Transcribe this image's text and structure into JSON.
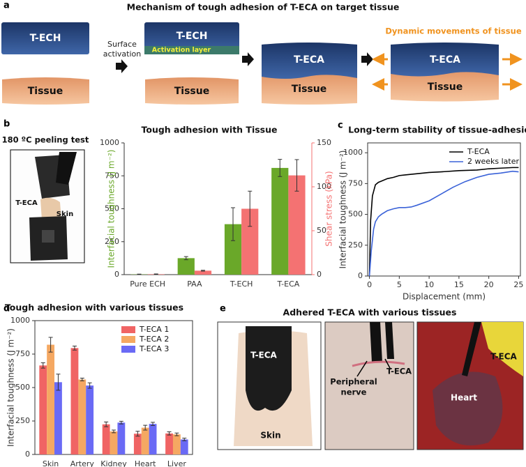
{
  "panel_labels": [
    "a",
    "b",
    "c",
    "d",
    "e"
  ],
  "diagram": {
    "title": "Mechanism of tough adhesion of T-ECA on target tissue",
    "step1_top": "T-ECH",
    "step1_bottom": "Tissue",
    "arrow1_label": {
      "lines": [
        "Surface",
        "activation"
      ]
    },
    "step2_top": "T-ECH",
    "step2_layer": "Activation layer",
    "step2_bottom": "Tissue",
    "step3_top": "T-ECA",
    "step3_bottom": "Tissue",
    "step4_caption": "Dynamic movements of tissue",
    "step4_top": "T-ECA",
    "step4_bottom": "Tissue"
  },
  "photos": {
    "peel_title": "180 ºC peeling test",
    "peel_teca": "T-ECA",
    "peel_skin": "Skin",
    "panel_e_title": "Adhered T-ECA with various tissues",
    "e1_teca": "T-ECA",
    "e1_skin": "Skin",
    "e2_nerve": {
      "lines": [
        "Peripheral",
        "nerve"
      ]
    },
    "e2_teca": "T-ECA",
    "e3_teca": "T-ECA",
    "e3_heart": "Heart"
  },
  "chart_data": [
    {
      "type": "bar",
      "title": "Tough adhesion with Tissue",
      "categories": [
        "Pure ECH",
        "PAA",
        "T-ECH",
        "T-ECA"
      ],
      "ylabel": "Interfacial toughness (J m⁻²)",
      "y2label": "Shear stress (kPa)",
      "series": [
        {
          "color": "#6aa829",
          "values": [
            2,
            125,
            383,
            810
          ],
          "errors": [
            2,
            12,
            125,
            65
          ]
        },
        {
          "color": "#f47272",
          "axis": "y2",
          "values": [
            0.5,
            4.5,
            75,
            113
          ],
          "errors": [
            0.3,
            0.5,
            20,
            18
          ]
        }
      ],
      "ylim": [
        0,
        1000
      ],
      "yticks": [
        0,
        250,
        500,
        750,
        1000
      ],
      "y2lim": [
        0,
        150
      ],
      "y2ticks": [
        0,
        50,
        100,
        150
      ]
    },
    {
      "type": "line",
      "title": "Long-term stability of tissue-adhesion",
      "xlabel": "Displacement (mm)",
      "ylabel": "Interfacial toughness (J m⁻²)",
      "series": [
        {
          "name": "T-ECA",
          "color": "#000000",
          "x": [
            0,
            0.2,
            0.5,
            1,
            1.5,
            2,
            3,
            4,
            5,
            6,
            8,
            10,
            12,
            15,
            18,
            20,
            22,
            24,
            25
          ],
          "values": [
            0,
            450,
            650,
            740,
            760,
            770,
            790,
            800,
            815,
            820,
            830,
            840,
            845,
            855,
            860,
            870,
            875,
            880,
            880
          ]
        },
        {
          "name": "2 weeks later",
          "color": "#3a62d8",
          "x": [
            0,
            0.3,
            0.7,
            1,
            1.5,
            2,
            3,
            4,
            5,
            6,
            7,
            8,
            10,
            12,
            14,
            16,
            18,
            20,
            22,
            24,
            25
          ],
          "values": [
            0,
            200,
            380,
            440,
            480,
            500,
            530,
            545,
            555,
            555,
            560,
            575,
            610,
            665,
            720,
            765,
            800,
            825,
            835,
            850,
            845
          ]
        }
      ],
      "xlim": [
        -0.3,
        25.3
      ],
      "xticks": [
        0,
        5,
        10,
        15,
        20,
        25
      ],
      "ylim": [
        0,
        1080
      ],
      "yticks": [
        0,
        250,
        500,
        750,
        1000
      ],
      "legend": "upper right"
    },
    {
      "type": "bar",
      "title": "Tough adhesion with various tissues",
      "categories": [
        "Skin",
        "Artery",
        "Kidney",
        "Heart",
        "Liver"
      ],
      "ylabel": "Interfacial toughness (J m⁻²)",
      "series": [
        {
          "name": "T-ECA 1",
          "color": "#f06464",
          "values": [
            665,
            795,
            225,
            155,
            157
          ],
          "errors": [
            20,
            15,
            18,
            18,
            12
          ]
        },
        {
          "name": "T-ECA 2",
          "color": "#f5a862",
          "values": [
            820,
            560,
            172,
            200,
            150
          ],
          "errors": [
            55,
            10,
            10,
            18,
            10
          ]
        },
        {
          "name": "T-ECA 3",
          "color": "#6a6af5",
          "values": [
            540,
            515,
            238,
            228,
            112
          ],
          "errors": [
            60,
            20,
            10,
            12,
            10
          ]
        }
      ],
      "ylim": [
        0,
        1000
      ],
      "yticks": [
        0,
        250,
        500,
        750,
        1000
      ],
      "legend": "upper right"
    }
  ]
}
